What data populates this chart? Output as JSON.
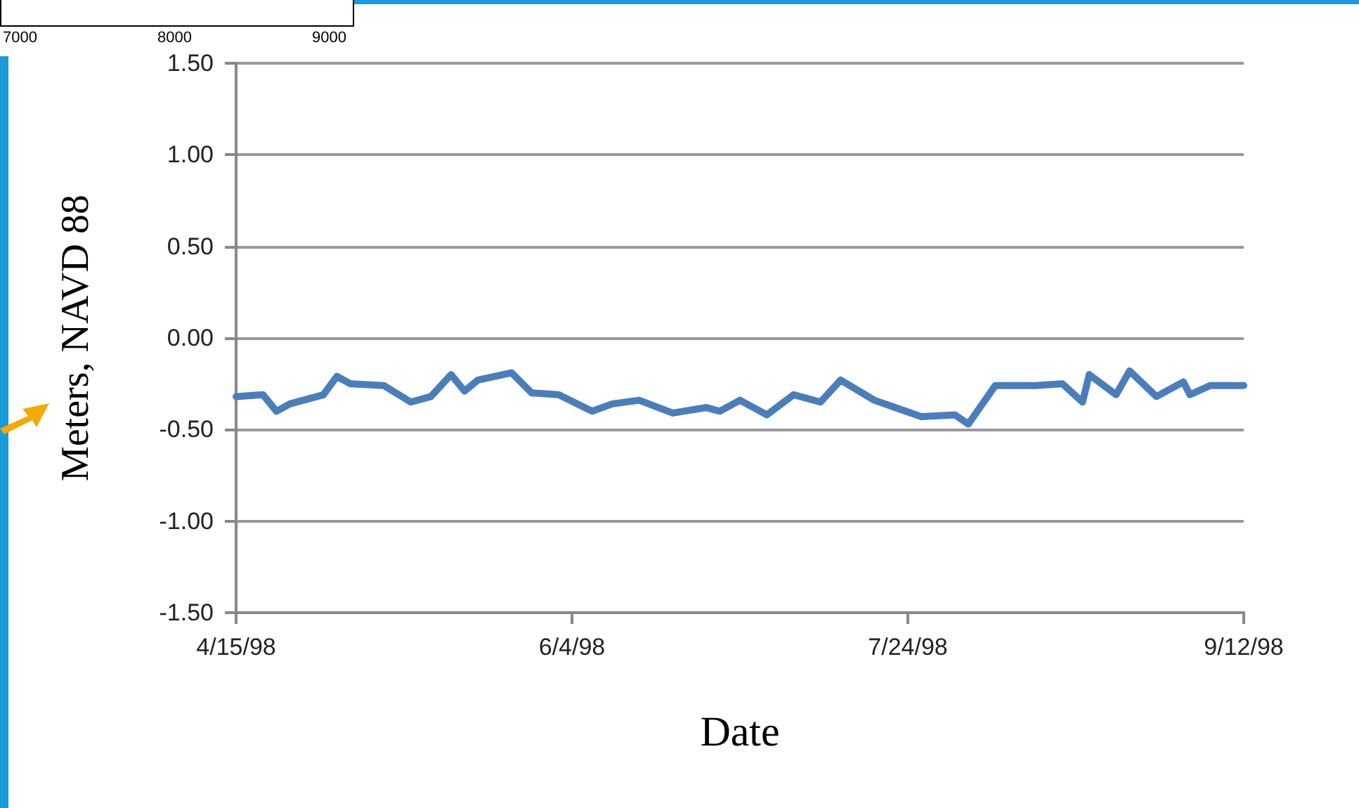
{
  "chart_data": {
    "type": "line",
    "xlabel": "Date",
    "ylabel": "Meters, NAVD 88",
    "annotations": [
      "7000",
      "8000",
      "9000"
    ],
    "x": [
      "1998-04-15",
      "1998-04-19",
      "1998-04-21",
      "1998-04-23",
      "1998-04-28",
      "1998-04-30",
      "1998-05-02",
      "1998-05-07",
      "1998-05-11",
      "1998-05-14",
      "1998-05-17",
      "1998-05-19",
      "1998-05-21",
      "1998-05-26",
      "1998-05-29",
      "1998-06-02",
      "1998-06-07",
      "1998-06-10",
      "1998-06-14",
      "1998-06-19",
      "1998-06-24",
      "1998-06-26",
      "1998-06-29",
      "1998-07-03",
      "1998-07-07",
      "1998-07-11",
      "1998-07-14",
      "1998-07-19",
      "1998-07-26",
      "1998-07-31",
      "1998-08-02",
      "1998-08-06",
      "1998-08-12",
      "1998-08-16",
      "1998-08-19",
      "1998-08-20",
      "1998-08-24",
      "1998-08-26",
      "1998-08-30",
      "1998-09-03",
      "1998-09-04",
      "1998-09-07",
      "1998-09-12"
    ],
    "series": [
      {
        "color": "#4a7ebb",
        "values": [
          -0.32,
          -0.31,
          -0.4,
          -0.36,
          -0.31,
          -0.21,
          -0.25,
          -0.26,
          -0.35,
          -0.32,
          -0.2,
          -0.29,
          -0.23,
          -0.19,
          -0.3,
          -0.31,
          -0.4,
          -0.36,
          -0.34,
          -0.41,
          -0.38,
          -0.4,
          -0.34,
          -0.42,
          -0.31,
          -0.35,
          -0.23,
          -0.34,
          -0.43,
          -0.42,
          -0.47,
          -0.26,
          -0.26,
          -0.25,
          -0.35,
          -0.2,
          -0.31,
          -0.18,
          -0.32,
          -0.24,
          -0.31,
          -0.26,
          -0.26
        ]
      }
    ],
    "xlim": [
      "1998-04-15",
      "1998-09-12"
    ],
    "xticks": [
      {
        "value": "1998-04-15",
        "label": "4/15/98"
      },
      {
        "value": "1998-06-04",
        "label": "6/4/98"
      },
      {
        "value": "1998-07-24",
        "label": "7/24/98"
      },
      {
        "value": "1998-09-12",
        "label": "9/12/98"
      }
    ],
    "ylim": [
      -1.5,
      1.5
    ],
    "yticks": [
      {
        "value": -1.5,
        "label": "-1.50"
      },
      {
        "value": -1,
        "label": "-1.00"
      },
      {
        "value": -0.5,
        "label": "-0.50"
      },
      {
        "value": 0,
        "label": "0.00"
      },
      {
        "value": 0.5,
        "label": "0.50"
      },
      {
        "value": 1,
        "label": "1.00"
      },
      {
        "value": 1.5,
        "label": "1.50"
      }
    ],
    "grid": "y",
    "marker": "none",
    "line_style": "solid"
  }
}
